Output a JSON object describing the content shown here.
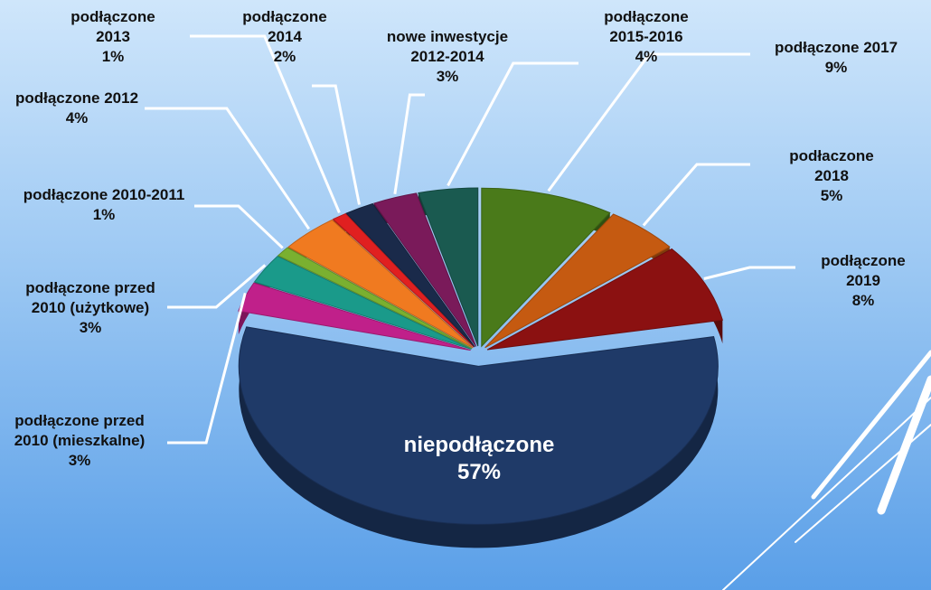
{
  "chart_data": {
    "type": "pie",
    "categories": [
      "podłączone 2017",
      "podłaczone 2018",
      "podłączone 2019",
      "niepodłączone",
      "podłączone przed 2010 (mieszkalne)",
      "podłączone przed 2010 (użytkowe)",
      "podłączone 2010-2011",
      "podłączone 2012",
      "podłączone 2013",
      "podłączone 2014",
      "nowe inwestycje 2012-2014",
      "podłączone 2015-2016"
    ],
    "values": [
      9,
      5,
      8,
      57,
      3,
      3,
      1,
      4,
      1,
      2,
      3,
      4
    ],
    "value_labels": [
      "9%",
      "5%",
      "8%",
      "57%",
      "3%",
      "3%",
      "1%",
      "4%",
      "1%",
      "2%",
      "3%",
      "4%"
    ],
    "colors": [
      "#4a7a1a",
      "#c55a11",
      "#8b1111",
      "#1f3a68",
      "#c0208a",
      "#1a9a8a",
      "#7ab030",
      "#f07a20",
      "#e02020",
      "#1a2a4a",
      "#7a1a5a",
      "#1a5a50"
    ]
  }
}
